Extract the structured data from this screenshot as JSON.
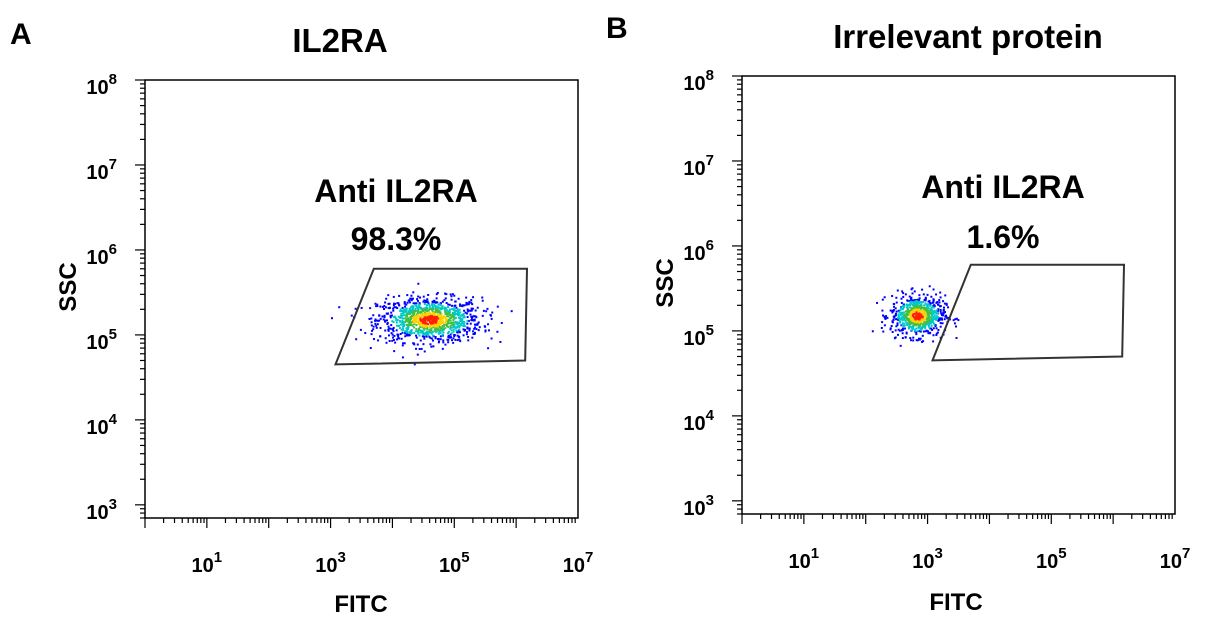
{
  "chart_data": [
    {
      "type": "scatter",
      "panel_label": "A",
      "title": "IL2RA",
      "xlabel": "FITC",
      "ylabel": "SSC",
      "x_scale": "log",
      "y_scale": "log",
      "xlim": [
        1,
        10000000
      ],
      "ylim": [
        700,
        100000000
      ],
      "x_ticks": [
        {
          "value": 10,
          "base": "10",
          "exp": "1"
        },
        {
          "value": 1000,
          "base": "10",
          "exp": "3"
        },
        {
          "value": 100000,
          "base": "10",
          "exp": "5"
        },
        {
          "value": 10000000,
          "base": "10",
          "exp": "7"
        }
      ],
      "y_ticks": [
        {
          "value": 1000,
          "base": "10",
          "exp": "3"
        },
        {
          "value": 10000,
          "base": "10",
          "exp": "4"
        },
        {
          "value": 100000,
          "base": "10",
          "exp": "5"
        },
        {
          "value": 1000000,
          "base": "10",
          "exp": "6"
        },
        {
          "value": 10000000,
          "base": "10",
          "exp": "7"
        },
        {
          "value": 100000000,
          "base": "10",
          "exp": "8"
        }
      ],
      "gate": {
        "label": "Anti IL2RA",
        "percent": "98.3%",
        "vertices": [
          [
            1200,
            45000
          ],
          [
            5000,
            600000
          ],
          [
            1500000,
            600000
          ],
          [
            1400000,
            50000
          ]
        ]
      },
      "population": {
        "center_x": 40000,
        "center_y": 150000,
        "spread_x_decades": 0.42,
        "spread_y_decades": 0.13,
        "n_points": 1100
      },
      "grid": false
    },
    {
      "type": "scatter",
      "panel_label": "B",
      "title": "Irrelevant protein",
      "xlabel": "FITC",
      "ylabel": "SSC",
      "x_scale": "log",
      "y_scale": "log",
      "xlim": [
        1,
        10000000
      ],
      "ylim": [
        700,
        100000000
      ],
      "x_ticks": [
        {
          "value": 10,
          "base": "10",
          "exp": "1"
        },
        {
          "value": 1000,
          "base": "10",
          "exp": "3"
        },
        {
          "value": 100000,
          "base": "10",
          "exp": "5"
        },
        {
          "value": 10000000,
          "base": "10",
          "exp": "7"
        }
      ],
      "y_ticks": [
        {
          "value": 1000,
          "base": "10",
          "exp": "3"
        },
        {
          "value": 10000,
          "base": "10",
          "exp": "4"
        },
        {
          "value": 100000,
          "base": "10",
          "exp": "5"
        },
        {
          "value": 1000000,
          "base": "10",
          "exp": "6"
        },
        {
          "value": 10000000,
          "base": "10",
          "exp": "7"
        },
        {
          "value": 100000000,
          "base": "10",
          "exp": "8"
        }
      ],
      "gate": {
        "label": "Anti IL2RA",
        "percent": "1.6%",
        "vertices": [
          [
            1200,
            45000
          ],
          [
            5000,
            600000
          ],
          [
            1500000,
            600000
          ],
          [
            1400000,
            50000
          ]
        ]
      },
      "population": {
        "center_x": 700,
        "center_y": 150000,
        "spread_x_decades": 0.22,
        "spread_y_decades": 0.12,
        "n_points": 700
      },
      "grid": false
    }
  ],
  "colors": {
    "axis": "#000000",
    "gate": "#333333",
    "density_low": "#0000ff",
    "density_mid": "#00c8c8",
    "density_midhigh": "#40c040",
    "density_high": "#ffd000",
    "density_peak": "#ff2000"
  }
}
